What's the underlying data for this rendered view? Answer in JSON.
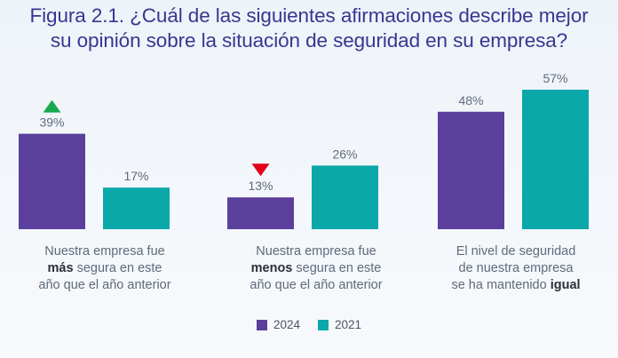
{
  "title_line1": "Figura 2.1. ¿Cuál de las siguientes afirmaciones describe mejor",
  "title_line2": "su opinión sobre la situación de seguridad en su empresa?",
  "colors": {
    "series_2024": "#5b3f9c",
    "series_2021": "#0aa8a8",
    "up_arrow": "#18a94c",
    "down_arrow": "#e2001a"
  },
  "icons": {
    "up": "triangle-up-icon",
    "down": "triangle-down-icon"
  },
  "categories": [
    {
      "pre": "Nuestra empresa fue",
      "bold": "más",
      "post": "segura en este",
      "line3": "año que el año anterior"
    },
    {
      "pre": "Nuestra empresa fue",
      "bold": "menos",
      "post": "segura en este",
      "line3": "año que el año anterior"
    },
    {
      "line1": "El nivel de seguridad",
      "line2": "de nuestra empresa",
      "pre3": "se ha mantenido",
      "bold": "igual"
    }
  ],
  "chart_data": {
    "type": "bar",
    "categories": [
      "Nuestra empresa fue más segura en este año que el año anterior",
      "Nuestra empresa fue menos segura en este año que el año anterior",
      "El nivel de seguridad de nuestra empresa se ha mantenido igual"
    ],
    "series": [
      {
        "name": "2024",
        "values": [
          39,
          13,
          48
        ],
        "labels": [
          "39%",
          "13%",
          "48%"
        ]
      },
      {
        "name": "2021",
        "values": [
          17,
          26,
          57
        ],
        "labels": [
          "17%",
          "26%",
          "57%"
        ]
      }
    ],
    "ylim": [
      0,
      57
    ],
    "grid": false,
    "legend": "bottom-center",
    "markers": [
      "up",
      "down",
      null
    ]
  },
  "legend": [
    {
      "label": "2024"
    },
    {
      "label": "2021"
    }
  ]
}
